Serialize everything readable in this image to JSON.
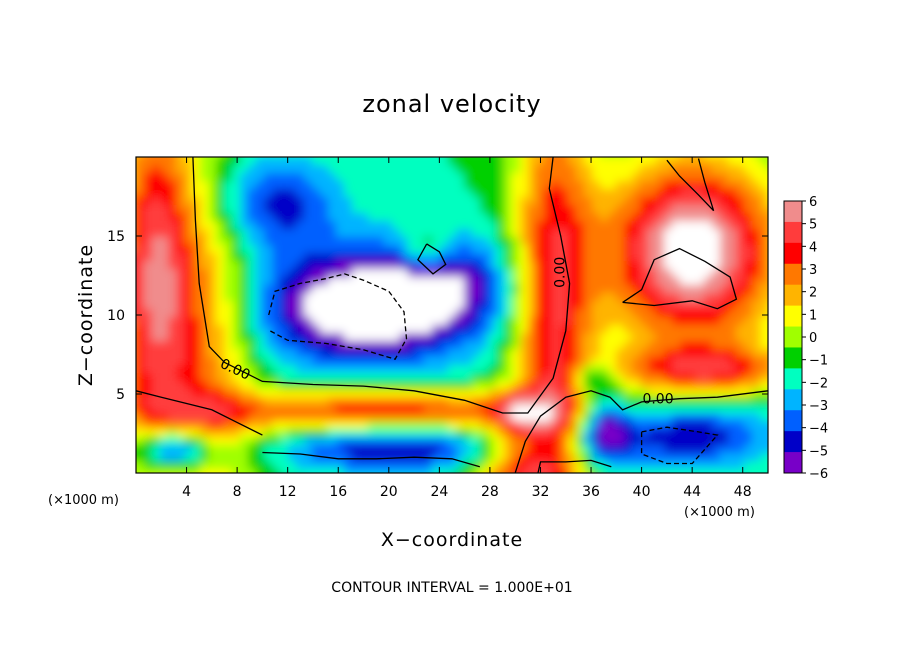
{
  "chart_data": {
    "type": "heatmap",
    "title": "zonal velocity",
    "xlabel": "X−coordinate",
    "ylabel": "Z−coordinate",
    "x_unit": "(×1000 m)",
    "y_unit": "(×1000 m)",
    "xlim": [
      0,
      50
    ],
    "ylim": [
      0,
      20
    ],
    "x_ticks": [
      4,
      8,
      12,
      16,
      20,
      24,
      28,
      32,
      36,
      40,
      44,
      48
    ],
    "y_ticks": [
      5,
      10,
      15
    ],
    "colorbar": {
      "ticks": [
        6,
        5,
        4,
        3,
        2,
        1,
        0,
        -1,
        -2,
        -3,
        -4,
        -5,
        -6
      ],
      "tick_labels": [
        "6",
        "5",
        "4",
        "3",
        "2",
        "1",
        "0",
        "−1",
        "−2",
        "−3",
        "−4",
        "−5",
        "−6"
      ],
      "colors": [
        "#f08c8c",
        "#ff3c3c",
        "#ff0000",
        "#ff7800",
        "#ffb400",
        "#ffff00",
        "#a0ff00",
        "#00d000",
        "#00ffc0",
        "#00b4ff",
        "#0060ff",
        "#0000c8",
        "#7800c8"
      ],
      "out_of_range": "white"
    },
    "contour_label": "0.00",
    "contour_interval_text": "CONTOUR INTERVAL = 1.000E+01",
    "field_summary": [
      {
        "region": "left column near x=0–5",
        "value": 5
      },
      {
        "region": "upper left-centre x=8–24, z=14–20",
        "value": -4
      },
      {
        "region": "central cavity x=10–30, z=6–14",
        "value": -7
      },
      {
        "region": "column near x=32–37",
        "value": 4
      },
      {
        "region": "upper right x=38–50, z=8–20",
        "value": 7
      }
    ]
  }
}
